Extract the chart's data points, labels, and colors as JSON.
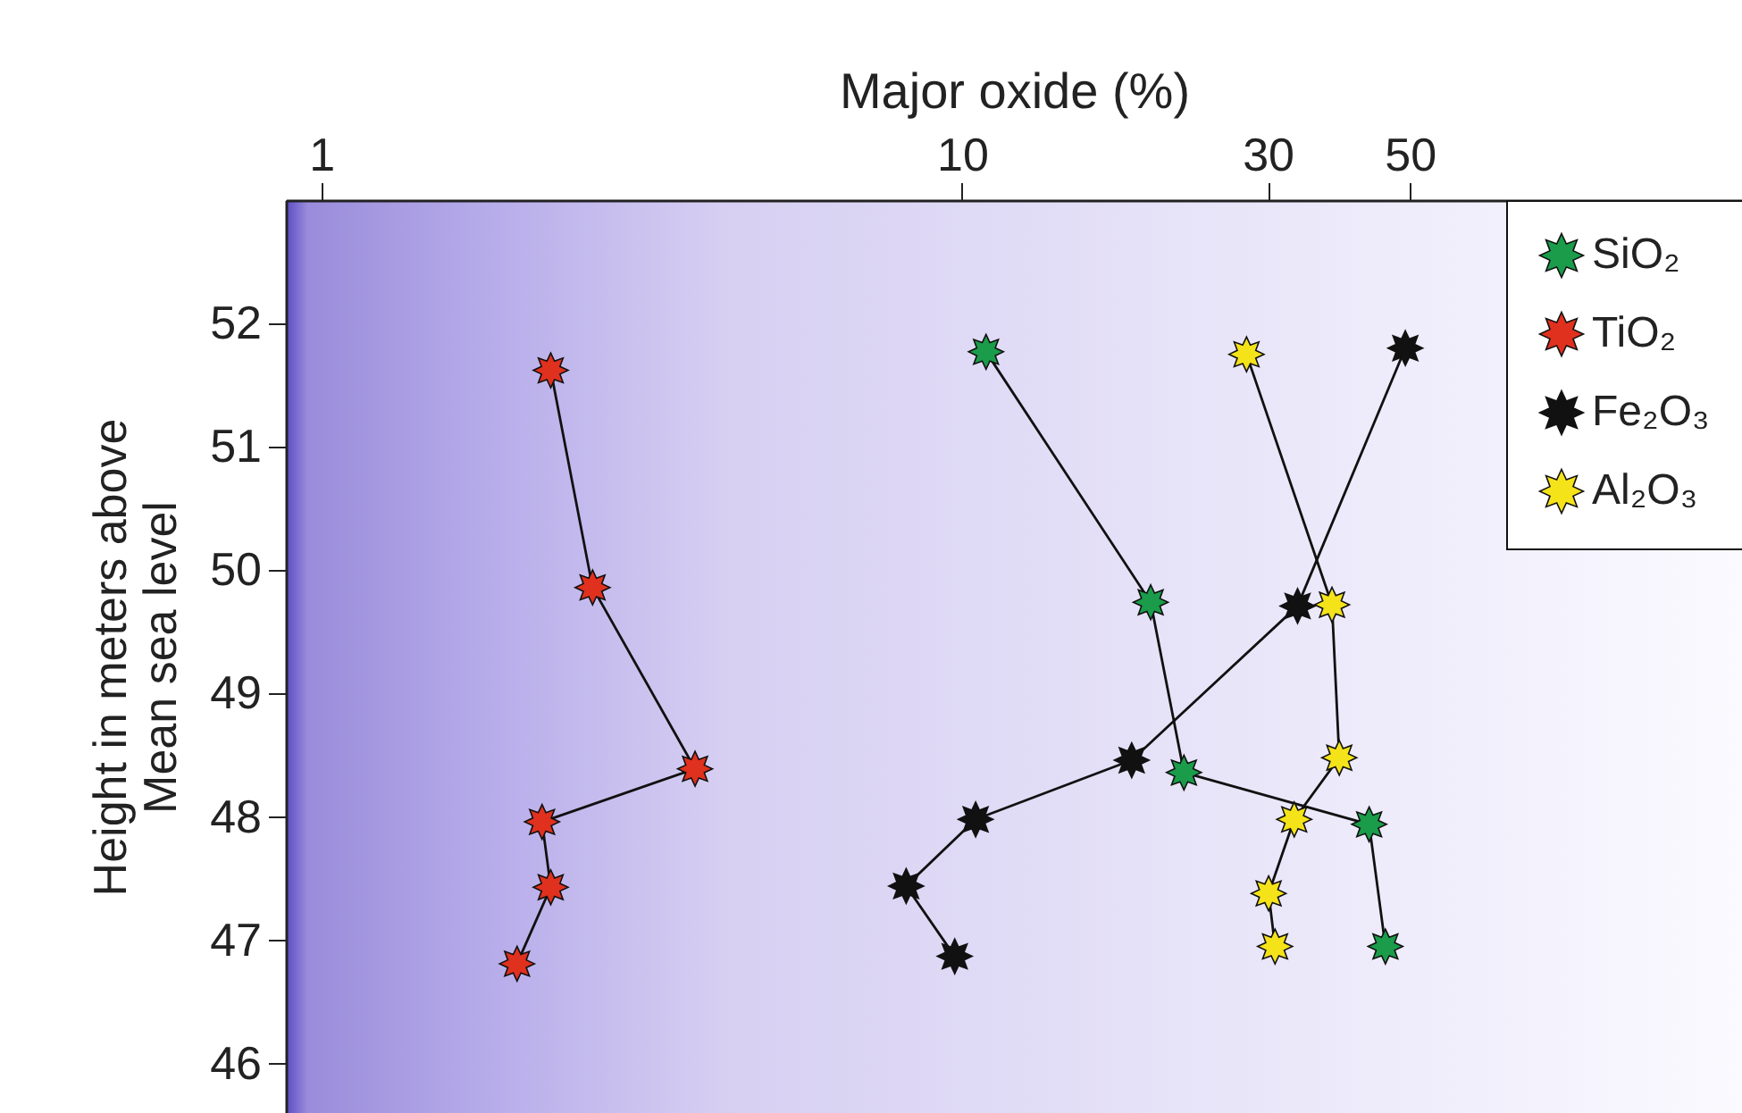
{
  "chart_data": {
    "type": "line",
    "xlabel": "Major oxide (%)",
    "ylabel": "Height in meters above\nMean sea level",
    "log": "x",
    "xlim": [
      0.88,
      165
    ],
    "xticks": [
      1,
      10,
      30,
      50
    ],
    "ylim": [
      45.6,
      53
    ],
    "yticks": [
      46,
      47,
      48,
      49,
      50,
      51,
      52
    ],
    "marker": "star",
    "line_style": "solid",
    "grid": false,
    "legend": "top right",
    "series": [
      {
        "name": "SiO₂",
        "color": "#1a9c4a",
        "x": [
          10.9,
          19.7,
          22.2,
          43.2,
          45.8
        ],
        "values": [
          51.77,
          49.74,
          48.36,
          47.94,
          46.95
        ]
      },
      {
        "name": "TiO₂",
        "color": "#e0301e",
        "x": [
          2.28,
          2.65,
          3.83,
          2.21,
          2.28,
          2.02
        ],
        "values": [
          51.62,
          49.86,
          48.39,
          47.96,
          47.43,
          46.81
        ]
      },
      {
        "name": "Fe₂O₃",
        "color": "#111111",
        "x": [
          49.2,
          33.4,
          18.4,
          10.5,
          8.18,
          9.74
        ],
        "values": [
          51.8,
          49.71,
          48.46,
          47.98,
          47.44,
          46.87
        ]
      },
      {
        "name": "Al₂O₃",
        "color": "#f5e31a",
        "x": [
          27.8,
          37.8,
          38.8,
          33.0,
          30.1,
          30.8
        ],
        "values": [
          51.75,
          49.72,
          48.48,
          47.98,
          47.38,
          46.95
        ]
      }
    ]
  }
}
